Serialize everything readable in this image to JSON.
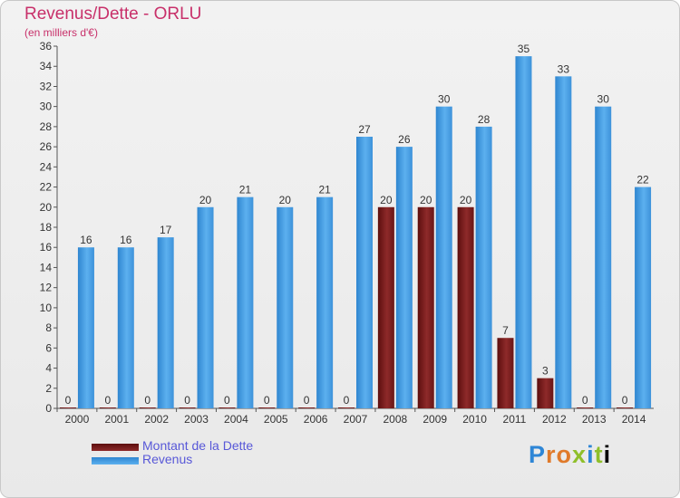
{
  "header": {
    "title": "Revenus/Dette - ORLU",
    "subtitle": "(en milliers d'€)"
  },
  "logo": {
    "text": "Proxiti"
  },
  "chart_data": {
    "type": "bar",
    "title": "Revenus/Dette - ORLU",
    "ylabel": "(en milliers d'€)",
    "xlabel": "",
    "ylim": [
      0,
      36
    ],
    "ytick_step": 2,
    "grid": false,
    "categories": [
      "2000",
      "2001",
      "2002",
      "2003",
      "2004",
      "2005",
      "2006",
      "2007",
      "2008",
      "2009",
      "2010",
      "2011",
      "2012",
      "2013",
      "2014"
    ],
    "series": [
      {
        "name": "Montant de la Dette",
        "color": "#7a1c1c",
        "values": [
          0,
          0,
          0,
          0,
          0,
          0,
          0,
          0,
          20,
          20,
          20,
          7,
          3,
          0,
          0
        ]
      },
      {
        "name": "Revenus",
        "color": "#4aa3e8",
        "values": [
          16,
          16,
          17,
          20,
          21,
          20,
          21,
          27,
          26,
          30,
          28,
          35,
          33,
          30,
          22
        ]
      }
    ],
    "legend_position": "bottom-left"
  }
}
